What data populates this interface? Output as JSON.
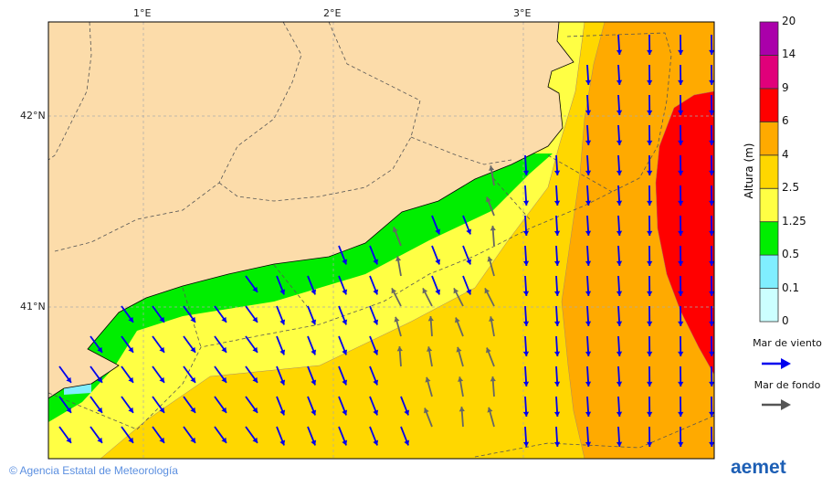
{
  "map": {
    "lon_ticks": [
      "1°E",
      "2°E",
      "3°E"
    ],
    "lat_ticks": [
      "42°N",
      "41°N"
    ]
  },
  "colorbar": {
    "label": "Altura (m)",
    "ticks": [
      "0",
      "0.1",
      "0.5",
      "1.25",
      "2.5",
      "4",
      "6",
      "9",
      "14",
      "20"
    ],
    "colors": [
      "#ccffff",
      "#80eeff",
      "#00ee00",
      "#ffff44",
      "#ffd700",
      "#ffaa00",
      "#ff0000",
      "#e0007a",
      "#aa00aa"
    ]
  },
  "legend": {
    "wind_sea": {
      "label": "Mar de viento",
      "color": "#0000ee"
    },
    "swell": {
      "label": "Mar de fondo",
      "color": "#555555"
    }
  },
  "footer": {
    "copyright": "© Agencia Estatal de Meteorología",
    "logo": "aemet"
  }
}
